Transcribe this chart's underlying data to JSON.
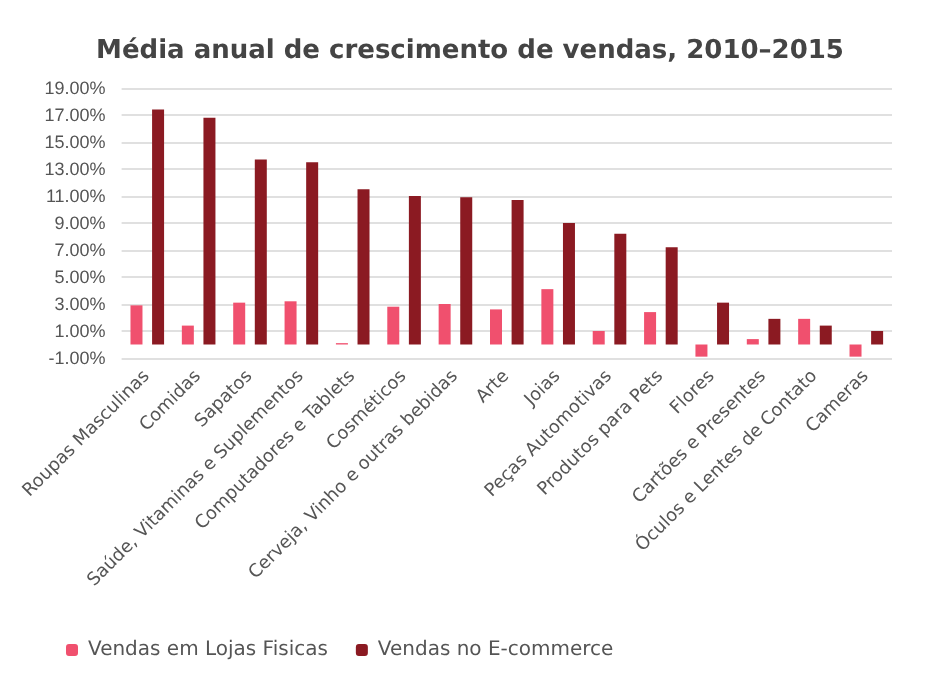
{
  "chart_data": {
    "type": "bar",
    "title": "Média anual de crescimento de vendas, 2010–2015",
    "categories": [
      "Roupas Masculinas",
      "Comidas",
      "Sapatos",
      "Saúde, Vitaminas e Suplementos",
      "Computadores e Tablets",
      "Cosméticos",
      "Cerveja, Vinho e outras bebidas",
      "Arte",
      "Joias",
      "Peças Automotivas",
      "Produtos para Pets",
      "Flores",
      "Cartões e Presentes",
      "Óculos e Lentes de Contato",
      "Cameras"
    ],
    "series": [
      {
        "name": "Vendas em Lojas Fisicas",
        "color": "#f0506e",
        "values": [
          2.9,
          1.4,
          3.1,
          3.2,
          0.1,
          2.8,
          3.0,
          2.6,
          4.1,
          1.0,
          2.4,
          -0.9,
          0.4,
          1.9,
          -0.9
        ]
      },
      {
        "name": "Vendas no E-commerce",
        "color": "#8b1a22",
        "values": [
          17.4,
          16.8,
          13.7,
          13.5,
          11.5,
          11.0,
          10.9,
          10.7,
          9.0,
          8.2,
          7.2,
          3.1,
          1.9,
          1.4,
          1.0
        ]
      }
    ],
    "ylim": [
      -1,
      19
    ],
    "yticks": [
      {
        "value": -1,
        "label": "-1.00%"
      },
      {
        "value": 1,
        "label": "1.00%"
      },
      {
        "value": 3,
        "label": "3.00%"
      },
      {
        "value": 5,
        "label": "5.00%"
      },
      {
        "value": 7,
        "label": "7.00%"
      },
      {
        "value": 9,
        "label": "9.00%"
      },
      {
        "value": 11,
        "label": "11.00%"
      },
      {
        "value": 13,
        "label": "13.00%"
      },
      {
        "value": 15,
        "label": "15.00%"
      },
      {
        "value": 17,
        "label": "17.00%"
      },
      {
        "value": 19,
        "label": "19.00%"
      }
    ],
    "grid": true,
    "legend": "bottom left"
  }
}
